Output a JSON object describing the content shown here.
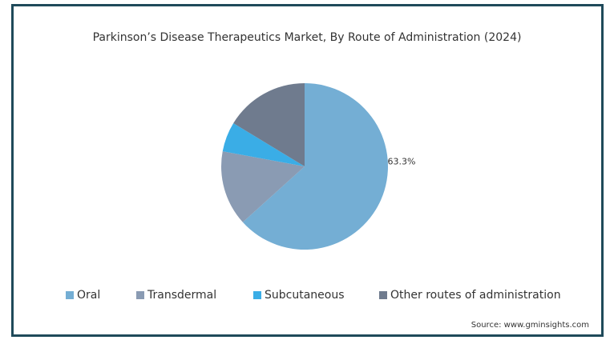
{
  "chart_data": {
    "type": "pie",
    "title": "Parkinson’s Disease Therapeutics Market, By Route of Administration (2024)",
    "categories": [
      "Oral",
      "Transdermal",
      "Subcutaneous",
      "Other routes of administration"
    ],
    "values": [
      63.3,
      14.6,
      5.8,
      16.3
    ],
    "value_labels": [
      "63.3%",
      null,
      null,
      null
    ],
    "colors": [
      "#74aed4",
      "#8a9bb3",
      "#3aade6",
      "#6f7b8e"
    ],
    "legend": "bottom",
    "source": "Source: www.gminsights.com"
  }
}
